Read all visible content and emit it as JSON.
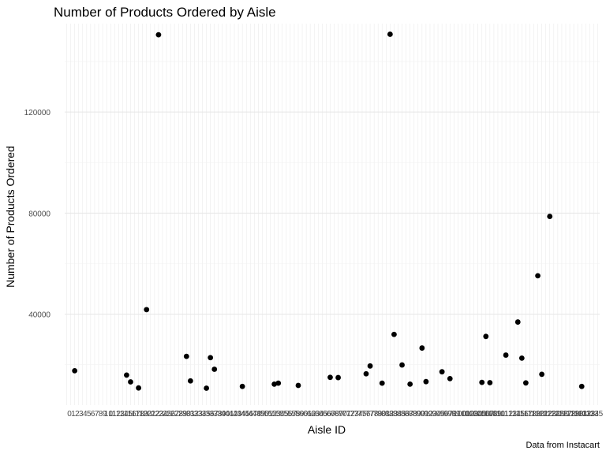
{
  "chart_data": {
    "type": "scatter",
    "title": "Number of Products Ordered by Aisle",
    "xlabel": "Aisle ID",
    "ylabel": "Number of Products Ordered",
    "caption": "Data from Instacart",
    "x_categories": [
      "1",
      "2",
      "3",
      "4",
      "5",
      "6",
      "7",
      "8",
      "9",
      "10",
      "11",
      "12",
      "13",
      "14",
      "15",
      "16",
      "17",
      "18",
      "19",
      "20",
      "21",
      "22",
      "23",
      "24",
      "25",
      "26",
      "27",
      "28",
      "29",
      "30",
      "31",
      "32",
      "33",
      "34",
      "35",
      "36",
      "37",
      "38",
      "39",
      "40",
      "41",
      "42",
      "43",
      "44",
      "45",
      "46",
      "47",
      "48",
      "49",
      "50",
      "51",
      "52",
      "53",
      "54",
      "55",
      "56",
      "57",
      "58",
      "59",
      "60",
      "61",
      "62",
      "63",
      "64",
      "65",
      "66",
      "67",
      "68",
      "69",
      "70",
      "71",
      "72",
      "73",
      "74",
      "75",
      "76",
      "77",
      "78",
      "79",
      "80",
      "81",
      "82",
      "83",
      "84",
      "85",
      "86",
      "87",
      "88",
      "89",
      "90",
      "91",
      "92",
      "93",
      "94",
      "95",
      "96",
      "97",
      "98",
      "99",
      "100",
      "101",
      "102",
      "103",
      "104",
      "105",
      "106",
      "107",
      "108",
      "109",
      "110",
      "111",
      "112",
      "113",
      "114",
      "115",
      "116",
      "117",
      "118",
      "119",
      "120",
      "121",
      "122",
      "123",
      "124",
      "125",
      "126",
      "127",
      "128",
      "129",
      "130",
      "131",
      "132",
      "133",
      "134"
    ],
    "x_tick_labels": [
      "0",
      "1",
      "2",
      "3",
      "4",
      "5",
      "6",
      "7",
      "8",
      "9",
      "10",
      "11",
      "12",
      "13",
      "14",
      "15",
      "16",
      "17",
      "18",
      "19",
      "20",
      "21",
      "22",
      "23",
      "24",
      "25",
      "26",
      "27",
      "28",
      "29",
      "30",
      "31",
      "32",
      "33",
      "34",
      "35",
      "36",
      "37",
      "38",
      "39",
      "40",
      "41",
      "42",
      "43",
      "44",
      "45",
      "46",
      "47",
      "48",
      "49",
      "50",
      "51",
      "52",
      "53",
      "54",
      "55",
      "56",
      "57",
      "58",
      "59",
      "60",
      "61",
      "62",
      "63",
      "64",
      "65",
      "66",
      "67",
      "68",
      "69",
      "70",
      "71",
      "72",
      "73",
      "74",
      "75",
      "76",
      "77",
      "78",
      "79",
      "80",
      "81",
      "82",
      "83",
      "84",
      "85",
      "86",
      "87",
      "88",
      "89",
      "90",
      "91",
      "92",
      "93",
      "94",
      "95",
      "96",
      "97",
      "98",
      "99",
      "100",
      "101",
      "102",
      "103",
      "104",
      "105",
      "106",
      "107",
      "108",
      "109",
      "110",
      "111",
      "112",
      "113",
      "114",
      "115",
      "116",
      "117",
      "118",
      "119",
      "120",
      "121",
      "122",
      "123",
      "124",
      "125",
      "126",
      "127",
      "128",
      "129",
      "130",
      "131",
      "132",
      "133",
      "134",
      "135"
    ],
    "y_ticks": [
      40000,
      80000,
      120000
    ],
    "y_tick_labels": [
      "40000",
      "80000",
      "120000"
    ],
    "ylim": [
      4000,
      155000
    ],
    "grid": true,
    "point_color": "#000000",
    "points": [
      {
        "x": 3,
        "y": 17600
      },
      {
        "x": 16,
        "y": 15900
      },
      {
        "x": 17,
        "y": 13200
      },
      {
        "x": 19,
        "y": 10800
      },
      {
        "x": 21,
        "y": 41800
      },
      {
        "x": 24,
        "y": 150600
      },
      {
        "x": 31,
        "y": 23300
      },
      {
        "x": 32,
        "y": 13600
      },
      {
        "x": 36,
        "y": 10700
      },
      {
        "x": 37,
        "y": 22800
      },
      {
        "x": 38,
        "y": 18200
      },
      {
        "x": 45,
        "y": 11400
      },
      {
        "x": 53,
        "y": 12300
      },
      {
        "x": 54,
        "y": 12700
      },
      {
        "x": 59,
        "y": 11800
      },
      {
        "x": 67,
        "y": 15000
      },
      {
        "x": 69,
        "y": 14900
      },
      {
        "x": 76,
        "y": 16400
      },
      {
        "x": 77,
        "y": 19500
      },
      {
        "x": 80,
        "y": 12700
      },
      {
        "x": 82,
        "y": 150800
      },
      {
        "x": 83,
        "y": 32000
      },
      {
        "x": 85,
        "y": 19900
      },
      {
        "x": 87,
        "y": 12300
      },
      {
        "x": 90,
        "y": 26600
      },
      {
        "x": 91,
        "y": 13300
      },
      {
        "x": 95,
        "y": 17200
      },
      {
        "x": 97,
        "y": 14500
      },
      {
        "x": 105,
        "y": 13000
      },
      {
        "x": 106,
        "y": 31200
      },
      {
        "x": 107,
        "y": 12900
      },
      {
        "x": 111,
        "y": 23800
      },
      {
        "x": 114,
        "y": 36900
      },
      {
        "x": 115,
        "y": 22600
      },
      {
        "x": 116,
        "y": 12800
      },
      {
        "x": 119,
        "y": 55200
      },
      {
        "x": 120,
        "y": 16200
      },
      {
        "x": 122,
        "y": 78700
      },
      {
        "x": 130,
        "y": 11400
      }
    ]
  }
}
